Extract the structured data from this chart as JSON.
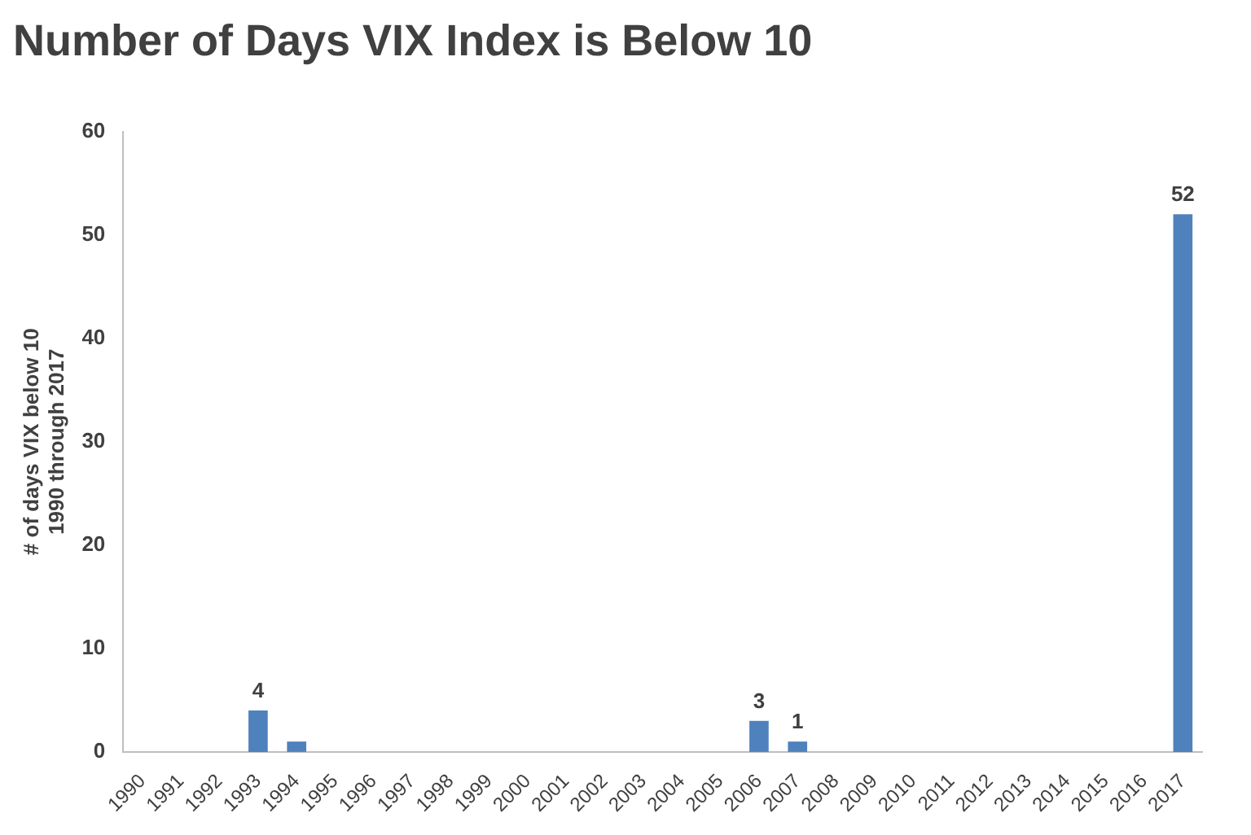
{
  "chart_data": {
    "type": "bar",
    "title": "Number of Days VIX Index is Below 10",
    "ylabel": "# of days VIX below 10\n1990 through 2017",
    "categories": [
      "1990",
      "1991",
      "1992",
      "1993",
      "1994",
      "1995",
      "1996",
      "1997",
      "1998",
      "1999",
      "2000",
      "2001",
      "2002",
      "2003",
      "2004",
      "2005",
      "2006",
      "2007",
      "2008",
      "2009",
      "2010",
      "2011",
      "2012",
      "2013",
      "2014",
      "2015",
      "2016",
      "2017"
    ],
    "values": [
      0,
      0,
      0,
      4,
      1,
      0,
      0,
      0,
      0,
      0,
      0,
      0,
      0,
      0,
      0,
      0,
      3,
      1,
      0,
      0,
      0,
      0,
      0,
      0,
      0,
      0,
      0,
      52
    ],
    "value_labels": [
      null,
      null,
      null,
      "4",
      null,
      null,
      null,
      null,
      null,
      null,
      null,
      null,
      null,
      null,
      null,
      null,
      "3",
      "1",
      null,
      null,
      null,
      null,
      null,
      null,
      null,
      null,
      null,
      "52"
    ],
    "color": "#4f81bd",
    "ylim": [
      0,
      60
    ],
    "yticks": [
      0,
      10,
      20,
      30,
      40,
      50,
      60
    ],
    "grid": false,
    "legend": false
  }
}
